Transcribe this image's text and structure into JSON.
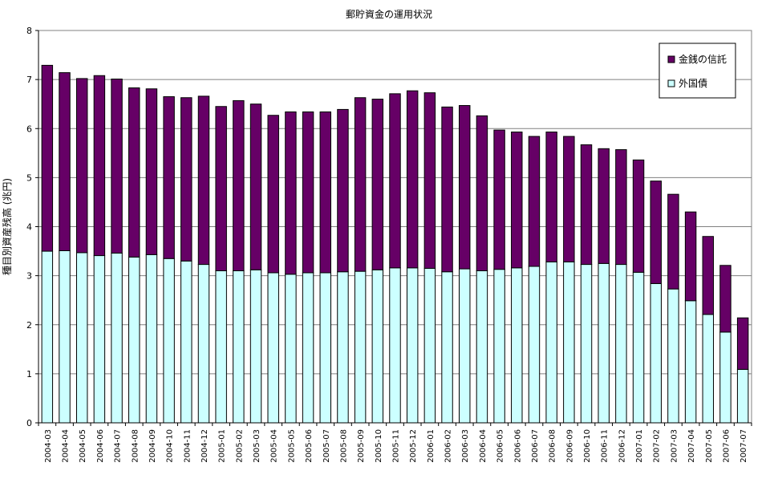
{
  "chart_data": {
    "type": "bar",
    "stacked": true,
    "title": "郵貯資金の運用状況",
    "ylabel": "種目別資産残高 (兆円)",
    "xlabel": "",
    "ylim": [
      0,
      8
    ],
    "yticks": [
      0,
      1,
      2,
      3,
      4,
      5,
      6,
      7,
      8
    ],
    "grid": true,
    "legend_position": "top-right",
    "categories": [
      "2004-03",
      "2004-04",
      "2004-05",
      "2004-06",
      "2004-07",
      "2004-08",
      "2004-09",
      "2004-10",
      "2004-11",
      "2004-12",
      "2005-01",
      "2005-02",
      "2005-03",
      "2005-04",
      "2005-05",
      "2005-06",
      "2005-07",
      "2005-08",
      "2005-09",
      "2005-10",
      "2005-11",
      "2005-12",
      "2006-01",
      "2006-02",
      "2006-03",
      "2006-04",
      "2006-05",
      "2006-06",
      "2006-07",
      "2006-08",
      "2006-09",
      "2006-10",
      "2006-11",
      "2006-12",
      "2007-01",
      "2007-02",
      "2007-03",
      "2007-04",
      "2007-05",
      "2007-06",
      "2007-07"
    ],
    "totals": [
      7.29,
      7.14,
      7.02,
      7.08,
      7.01,
      6.83,
      6.81,
      6.65,
      6.63,
      6.66,
      6.45,
      6.57,
      6.5,
      6.27,
      6.34,
      6.34,
      6.34,
      6.39,
      6.63,
      6.6,
      6.71,
      6.77,
      6.73,
      6.44,
      6.47,
      6.26,
      5.97,
      5.93,
      5.84,
      5.93,
      5.84,
      5.67,
      5.59,
      5.57,
      5.36,
      4.93,
      4.66,
      4.3,
      3.8,
      3.21,
      2.14
    ],
    "series": [
      {
        "name": "外国債",
        "color": "#ccffff",
        "values": [
          3.5,
          3.51,
          3.47,
          3.41,
          3.46,
          3.38,
          3.43,
          3.35,
          3.3,
          3.23,
          3.1,
          3.1,
          3.12,
          3.06,
          3.03,
          3.06,
          3.06,
          3.08,
          3.09,
          3.12,
          3.16,
          3.16,
          3.15,
          3.08,
          3.14,
          3.1,
          3.13,
          3.16,
          3.19,
          3.28,
          3.28,
          3.23,
          3.25,
          3.23,
          3.07,
          2.84,
          2.73,
          2.49,
          2.21,
          1.85,
          1.09
        ]
      },
      {
        "name": "金銭の信託",
        "color": "#660066",
        "values": [
          3.79,
          3.63,
          3.55,
          3.67,
          3.55,
          3.45,
          3.38,
          3.3,
          3.33,
          3.43,
          3.35,
          3.47,
          3.38,
          3.21,
          3.31,
          3.28,
          3.28,
          3.31,
          3.54,
          3.48,
          3.55,
          3.61,
          3.58,
          3.36,
          3.33,
          3.16,
          2.84,
          2.77,
          2.65,
          2.65,
          2.56,
          2.44,
          2.34,
          2.34,
          2.29,
          2.09,
          1.93,
          1.81,
          1.59,
          1.36,
          1.05
        ]
      }
    ]
  }
}
